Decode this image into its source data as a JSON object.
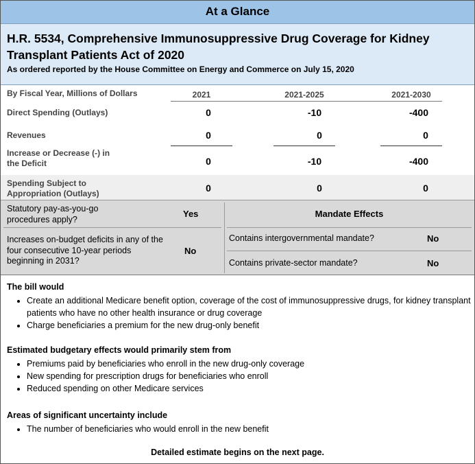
{
  "header": {
    "label": "At a Glance"
  },
  "bill": {
    "title": "H.R. 5534, Comprehensive Immunosuppressive Drug Coverage for Kidney Transplant Patients Act of 2020",
    "subtitle": "As ordered reported by the House Committee on Energy and Commerce on July 15, 2020"
  },
  "budget_table": {
    "heading": "By Fiscal Year, Millions of Dollars",
    "columns": [
      "2021",
      "2021-2025",
      "2021-2030"
    ],
    "rows": [
      {
        "label": "Direct Spending (Outlays)",
        "values": [
          "0",
          "-10",
          "-400"
        ]
      },
      {
        "label": "Revenues",
        "values": [
          "0",
          "0",
          "0"
        ]
      },
      {
        "label": "Increase or Decrease (-) in the Deficit",
        "values": [
          "0",
          "-10",
          "-400"
        ]
      },
      {
        "label": "Spending Subject to Appropriation (Outlays)",
        "values": [
          "0",
          "0",
          "0"
        ]
      }
    ]
  },
  "paygo": {
    "label": "Statutory pay-as-you-go procedures apply?",
    "value": "Yes"
  },
  "long_term": {
    "label": "Increases on-budget deficits in any of the four consecutive 10-year periods beginning in 2031?",
    "value": "No"
  },
  "mandates": {
    "title": "Mandate Effects",
    "items": [
      {
        "label": "Contains intergovernmental mandate?",
        "value": "No"
      },
      {
        "label": "Contains private-sector mandate?",
        "value": "No"
      }
    ]
  },
  "sections": [
    {
      "title": "The bill would",
      "bullets": [
        "Create an additional Medicare benefit option, coverage of the cost of immunosuppressive drugs, for kidney transplant patients who have no other health insurance or drug coverage",
        "Charge beneficiaries a premium for the new drug-only benefit"
      ]
    },
    {
      "title": "Estimated budgetary effects would primarily stem from",
      "bullets": [
        "Premiums paid by beneficiaries who enroll in the new drug-only coverage",
        "New spending for prescription drugs for beneficiaries who enroll",
        "Reduced spending on other Medicare services"
      ]
    },
    {
      "title": "Areas of significant uncertainty include",
      "bullets": [
        "The number of beneficiaries who would enroll in the new benefit"
      ]
    }
  ],
  "footer": {
    "note": "Detailed estimate begins on the next page."
  }
}
